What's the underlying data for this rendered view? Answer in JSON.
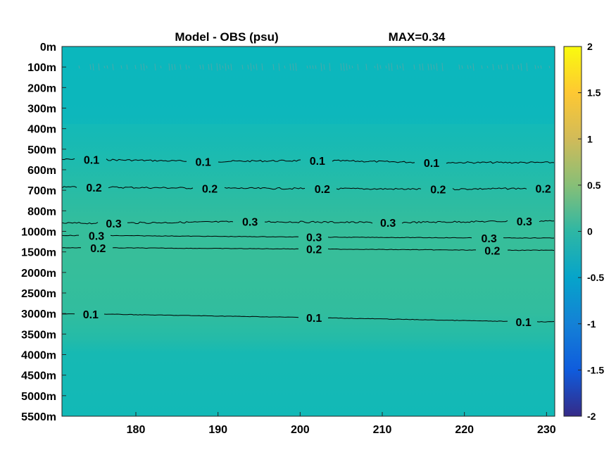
{
  "title": "Model - OBS (psu)",
  "max_label": "MAX=0.34",
  "chart_data": {
    "type": "heatmap",
    "title": "Model - OBS (psu)",
    "annotation": "MAX=0.34",
    "x": {
      "lim": [
        171,
        231
      ],
      "ticks": [
        180,
        190,
        200,
        210,
        220,
        230
      ]
    },
    "y": {
      "ticks": [
        "0m",
        "100m",
        "200m",
        "300m",
        "400m",
        "500m",
        "600m",
        "700m",
        "800m",
        "1000m",
        "1500m",
        "2000m",
        "2500m",
        "3000m",
        "3500m",
        "4000m",
        "4500m",
        "5000m",
        "5500m"
      ],
      "reversed": true
    },
    "colorbar": {
      "colormap": "parula",
      "clim": [
        -2,
        2
      ],
      "ticks": [
        2,
        1.5,
        1,
        0.5,
        0,
        -0.5,
        -1,
        -1.5,
        -2
      ]
    },
    "contours": [
      {
        "level": 0.1,
        "labels": [
          {
            "text": "0.1",
            "x": 174.6,
            "y": "550m"
          },
          {
            "text": "0.1",
            "x": 188.2,
            "y": "560m"
          },
          {
            "text": "0.1",
            "x": 202.1,
            "y": "555m"
          },
          {
            "text": "0.1",
            "x": 216.0,
            "y": "565m"
          }
        ]
      },
      {
        "level": 0.2,
        "labels": [
          {
            "text": "0.2",
            "x": 174.9,
            "y": "685m"
          },
          {
            "text": "0.2",
            "x": 189.0,
            "y": "690m"
          },
          {
            "text": "0.2",
            "x": 202.7,
            "y": "692m"
          },
          {
            "text": "0.2",
            "x": 216.8,
            "y": "695m"
          },
          {
            "text": "0.2",
            "x": 229.6,
            "y": "690m"
          }
        ]
      },
      {
        "level": 0.3,
        "labels": [
          {
            "text": "0.3",
            "x": 177.3,
            "y": "920m"
          },
          {
            "text": "0.3",
            "x": 193.9,
            "y": "905m"
          },
          {
            "text": "0.3",
            "x": 210.7,
            "y": "915m"
          },
          {
            "text": "0.3",
            "x": 227.3,
            "y": "900m"
          }
        ]
      },
      {
        "level": 0.3,
        "labels": [
          {
            "text": "0.3",
            "x": 175.2,
            "y": "1100m"
          },
          {
            "text": "0.3",
            "x": 201.7,
            "y": "1140m"
          },
          {
            "text": "0.3",
            "x": 223.0,
            "y": "1160m"
          }
        ]
      },
      {
        "level": 0.2,
        "labels": [
          {
            "text": "0.2",
            "x": 175.4,
            "y": "1400m"
          },
          {
            "text": "0.2",
            "x": 201.7,
            "y": "1430m"
          },
          {
            "text": "0.2",
            "x": 223.4,
            "y": "1460m"
          }
        ]
      },
      {
        "level": 0.1,
        "labels": [
          {
            "text": "0.1",
            "x": 174.5,
            "y": "3010m"
          },
          {
            "text": "0.1",
            "x": 201.7,
            "y": "3100m"
          },
          {
            "text": "0.1",
            "x": 227.2,
            "y": "3200m"
          }
        ]
      }
    ],
    "grid": false
  },
  "colors": {
    "background": "#ffffff",
    "field_base": "#21b3ae",
    "field_upper": "#0ab8be",
    "field_mid": "#2ebba0",
    "field_peak": "#3abf98",
    "contour": "#000000"
  }
}
